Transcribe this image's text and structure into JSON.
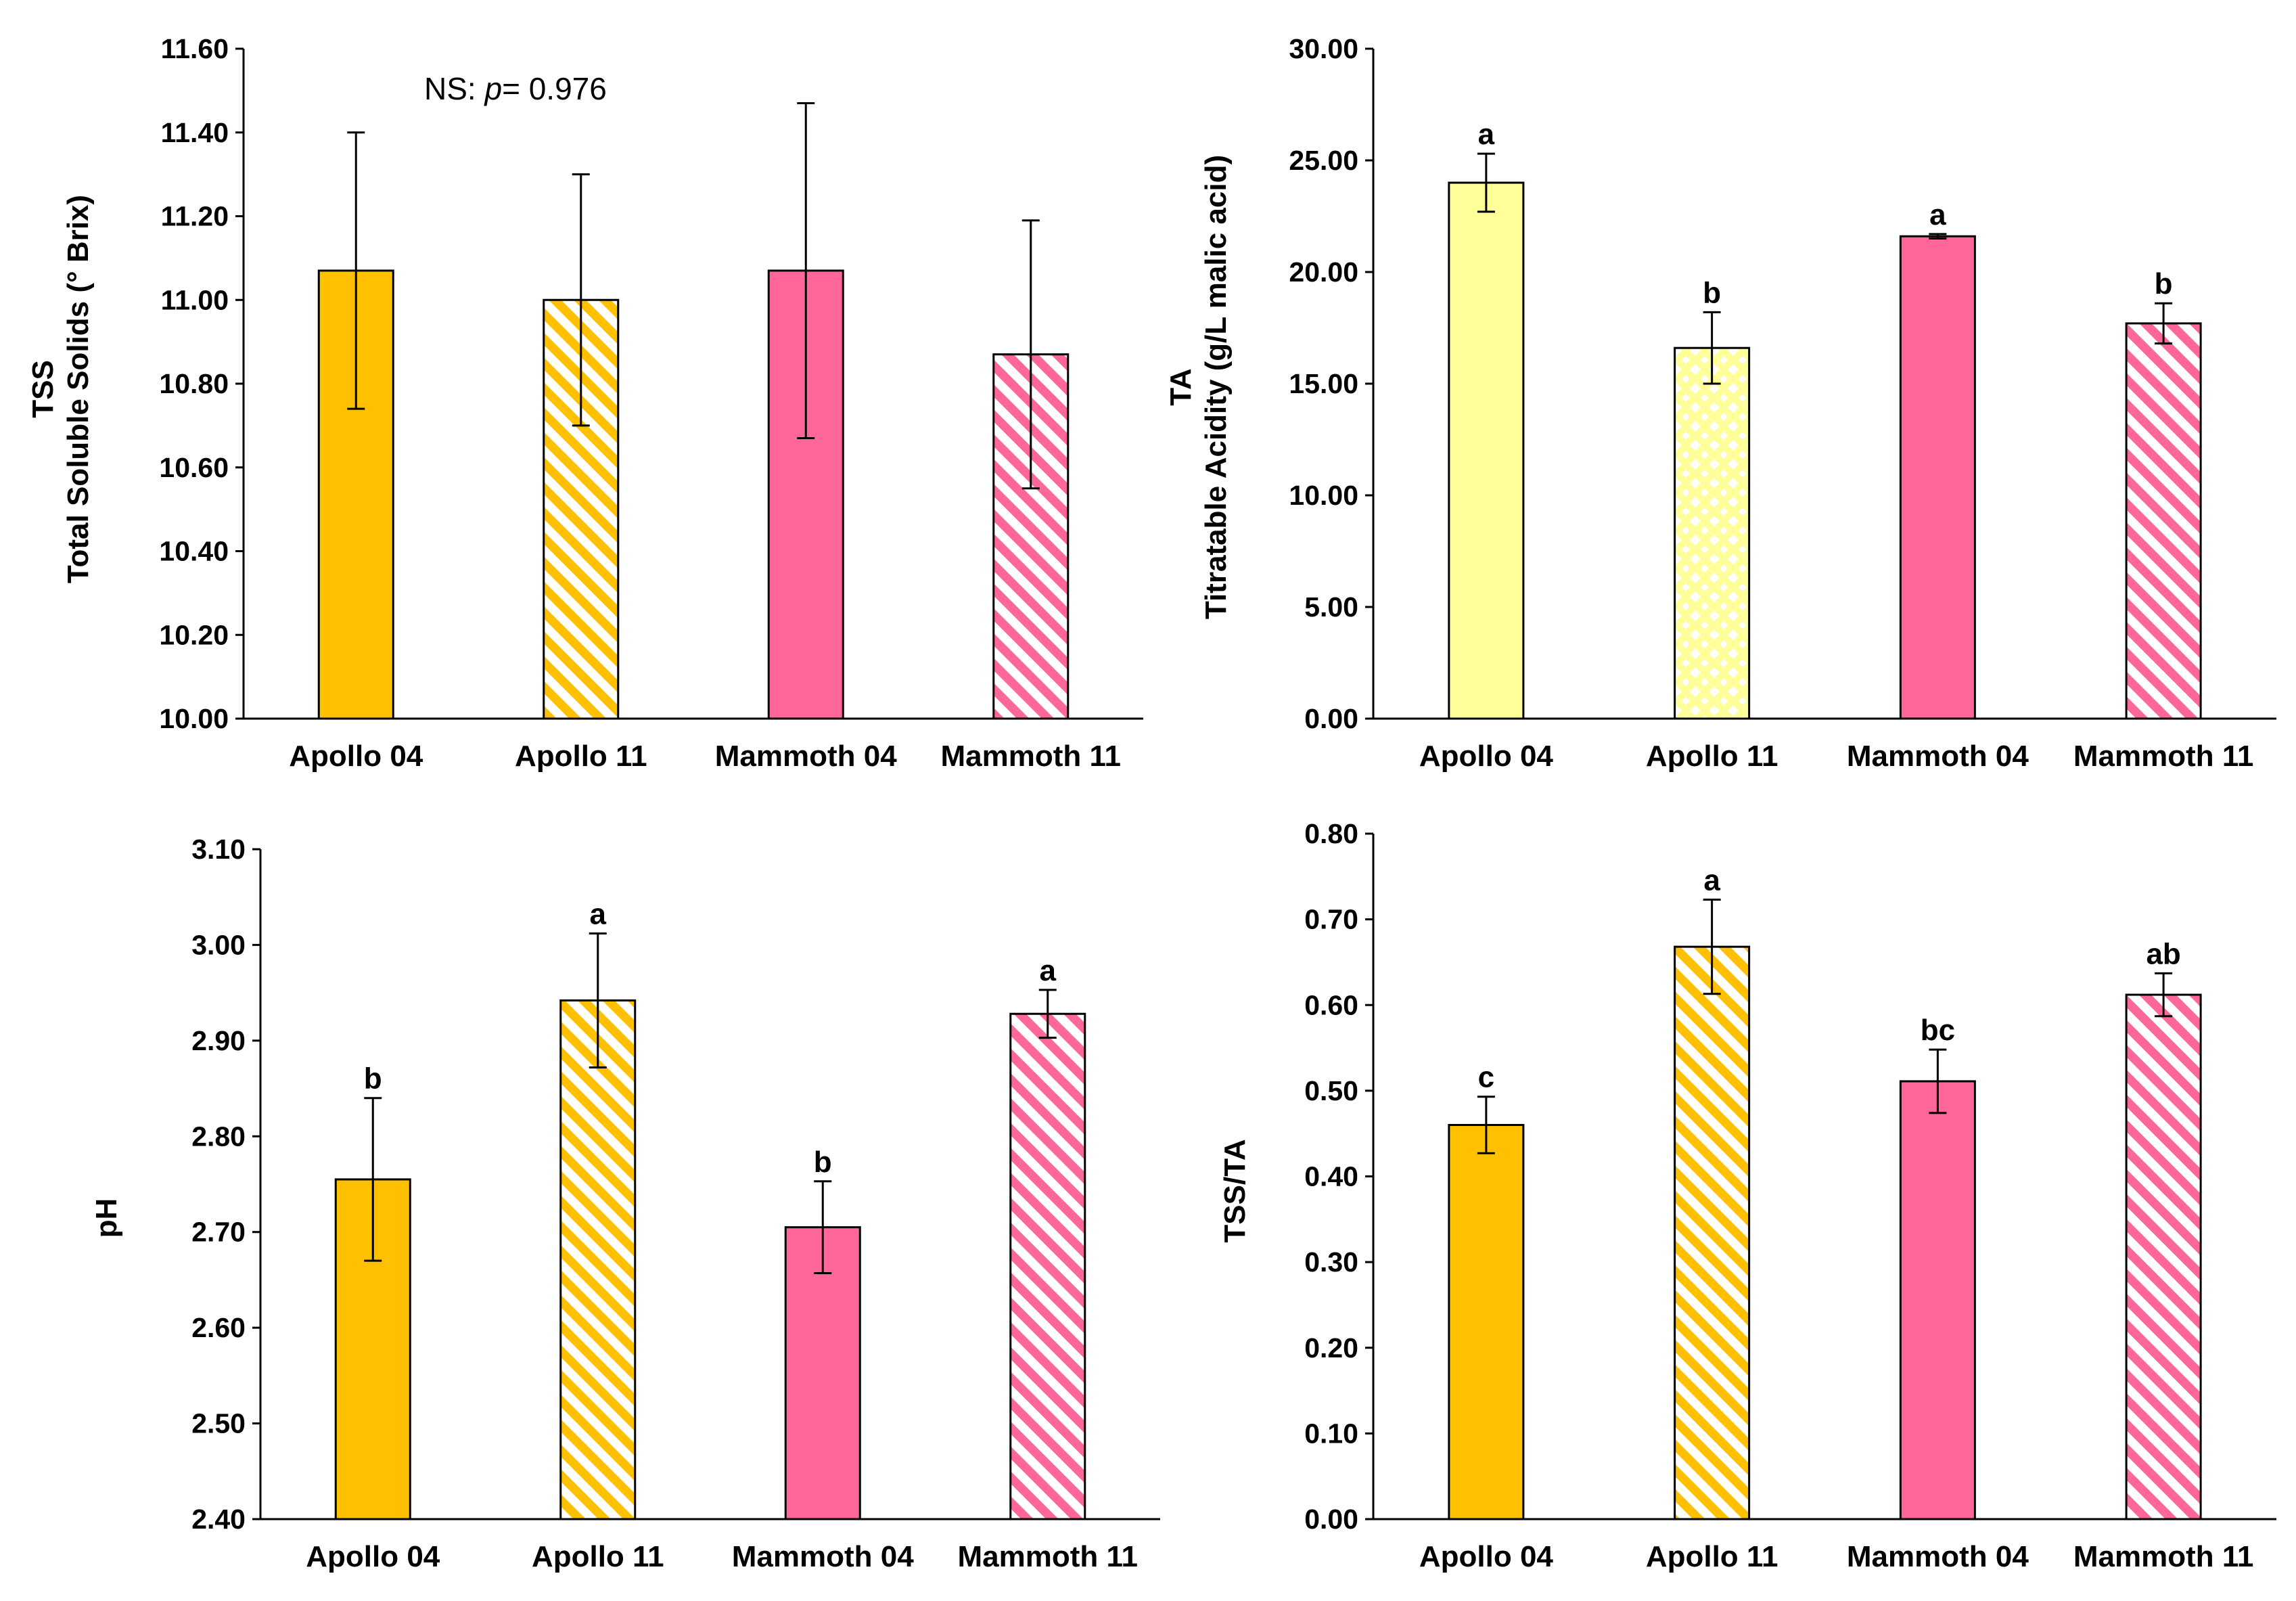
{
  "chart_data": [
    {
      "type": "bar",
      "id": "tss",
      "categories": [
        "Apollo 04",
        "Apollo 11",
        "Mammoth 04",
        "Mammoth 11"
      ],
      "values": [
        11.07,
        11.0,
        11.07,
        10.87
      ],
      "errors": [
        0.33,
        0.3,
        0.4,
        0.32
      ],
      "sig_letters": [
        "",
        "",
        "",
        ""
      ],
      "fill_styles": [
        "solid-orange",
        "stripe-orange",
        "solid-pink",
        "stripe-pink"
      ],
      "ylim": [
        10.0,
        11.6
      ],
      "yticks": [
        "10.00",
        "10.20",
        "10.40",
        "10.60",
        "10.80",
        "11.00",
        "11.20",
        "11.40",
        "11.60"
      ],
      "ylabel_line1": "TSS",
      "ylabel_line2": "Total Soluble Solids (° Brix)",
      "annotation_prefix": "NS: ",
      "annotation_italic": "p",
      "annotation_suffix": "= 0.976"
    },
    {
      "type": "bar",
      "id": "ta",
      "categories": [
        "Apollo 04",
        "Apollo 11",
        "Mammoth 04",
        "Mammoth 11"
      ],
      "values": [
        24.0,
        16.6,
        21.6,
        17.7
      ],
      "errors": [
        1.3,
        1.6,
        0.1,
        0.9
      ],
      "sig_letters": [
        "a",
        "b",
        "a",
        "b"
      ],
      "fill_styles": [
        "solid-yellow",
        "dots-yellow",
        "solid-pink",
        "stripe-pink"
      ],
      "ylim": [
        0,
        30
      ],
      "yticks": [
        "0.00",
        "5.00",
        "10.00",
        "15.00",
        "20.00",
        "25.00",
        "30.00"
      ],
      "ylabel_line1": "TA",
      "ylabel_line2": "Titratable Acidity (g/L malic acid)"
    },
    {
      "type": "bar",
      "id": "ph",
      "categories": [
        "Apollo 04",
        "Apollo 11",
        "Mammoth 04",
        "Mammoth 11"
      ],
      "values": [
        2.755,
        2.942,
        2.705,
        2.928
      ],
      "errors": [
        0.085,
        0.07,
        0.048,
        0.025
      ],
      "sig_letters": [
        "b",
        "a",
        "b",
        "a"
      ],
      "fill_styles": [
        "solid-orange",
        "stripe-orange",
        "solid-pink",
        "stripe-pink"
      ],
      "ylim": [
        2.4,
        3.1
      ],
      "yticks": [
        "2.40",
        "2.50",
        "2.60",
        "2.70",
        "2.80",
        "2.90",
        "3.00",
        "3.10"
      ],
      "ylabel_line1": "pH"
    },
    {
      "type": "bar",
      "id": "tssta",
      "categories": [
        "Apollo 04",
        "Apollo 11",
        "Mammoth 04",
        "Mammoth 11"
      ],
      "values": [
        0.46,
        0.668,
        0.511,
        0.612
      ],
      "errors": [
        0.033,
        0.055,
        0.037,
        0.025
      ],
      "sig_letters": [
        "c",
        "a",
        "bc",
        "ab"
      ],
      "fill_styles": [
        "solid-orange",
        "stripe-orange",
        "solid-pink",
        "stripe-pink"
      ],
      "ylim": [
        0,
        0.8
      ],
      "yticks": [
        "0.00",
        "0.10",
        "0.20",
        "0.30",
        "0.40",
        "0.50",
        "0.60",
        "0.70",
        "0.80"
      ],
      "ylabel_line1": "TSS/TA"
    }
  ],
  "colors": {
    "orange": "#FFC000",
    "pink": "#FF6699",
    "yellow": "#FFFF99",
    "white": "#FFFFFF",
    "outline": "#000000"
  }
}
